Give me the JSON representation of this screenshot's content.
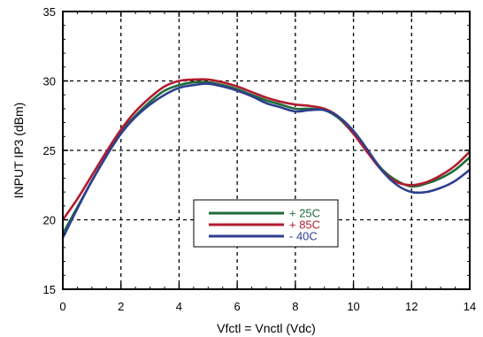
{
  "chart_data": {
    "type": "line",
    "title": "",
    "xlabel": "Vfctl = Vnctl (Vdc)",
    "ylabel": "INPUT IP3 (dBm)",
    "xlim": [
      0,
      14
    ],
    "ylim": [
      15,
      35
    ],
    "x_ticks": [
      "0",
      "2",
      "4",
      "6",
      "8",
      "10",
      "12",
      "14"
    ],
    "y_ticks": [
      "15",
      "20",
      "25",
      "30",
      "35"
    ],
    "grid": true,
    "legend_position": "center-right",
    "series": [
      {
        "name": "+ 25C",
        "color": "#1e6b3a",
        "x": [
          0,
          0.5,
          1,
          1.5,
          2,
          2.5,
          3,
          3.5,
          4,
          4.5,
          5,
          5.5,
          6,
          6.5,
          7,
          7.5,
          8,
          8.5,
          9,
          9.5,
          10,
          10.5,
          11,
          11.5,
          12,
          12.5,
          13,
          13.5,
          14
        ],
        "y": [
          19.0,
          20.9,
          22.8,
          24.6,
          26.3,
          27.5,
          28.5,
          29.3,
          29.7,
          29.9,
          29.9,
          29.7,
          29.4,
          29.0,
          28.6,
          28.3,
          28.0,
          28.0,
          27.9,
          27.3,
          26.2,
          24.9,
          23.6,
          22.8,
          22.4,
          22.6,
          23.0,
          23.6,
          24.5
        ]
      },
      {
        "name": "+ 85C",
        "color": "#b01c2e",
        "x": [
          0,
          0.5,
          1,
          1.5,
          2,
          2.5,
          3,
          3.5,
          4,
          4.5,
          5,
          5.5,
          6,
          6.5,
          7,
          7.5,
          8,
          8.5,
          9,
          9.5,
          10,
          10.5,
          11,
          11.5,
          12,
          12.5,
          13,
          13.5,
          14
        ],
        "y": [
          20.0,
          21.5,
          23.2,
          24.9,
          26.5,
          27.8,
          28.8,
          29.6,
          30.0,
          30.1,
          30.1,
          29.9,
          29.6,
          29.2,
          28.8,
          28.5,
          28.3,
          28.2,
          28.0,
          27.4,
          26.2,
          24.8,
          23.5,
          22.7,
          22.5,
          22.7,
          23.2,
          23.9,
          24.9
        ]
      },
      {
        "name": "- 40C",
        "color": "#2e3f8f",
        "x": [
          0,
          0.5,
          1,
          1.5,
          2,
          2.5,
          3,
          3.5,
          4,
          4.5,
          5,
          5.5,
          6,
          6.5,
          7,
          7.5,
          8,
          8.5,
          9,
          9.5,
          10,
          10.5,
          11,
          11.5,
          12,
          12.5,
          13,
          13.5,
          14
        ],
        "y": [
          18.7,
          20.8,
          22.8,
          24.6,
          26.2,
          27.4,
          28.3,
          29.0,
          29.5,
          29.7,
          29.8,
          29.6,
          29.3,
          28.9,
          28.4,
          28.1,
          27.8,
          27.9,
          27.9,
          27.4,
          26.4,
          25.0,
          23.5,
          22.5,
          22.0,
          22.0,
          22.3,
          22.8,
          23.6
        ]
      }
    ]
  }
}
